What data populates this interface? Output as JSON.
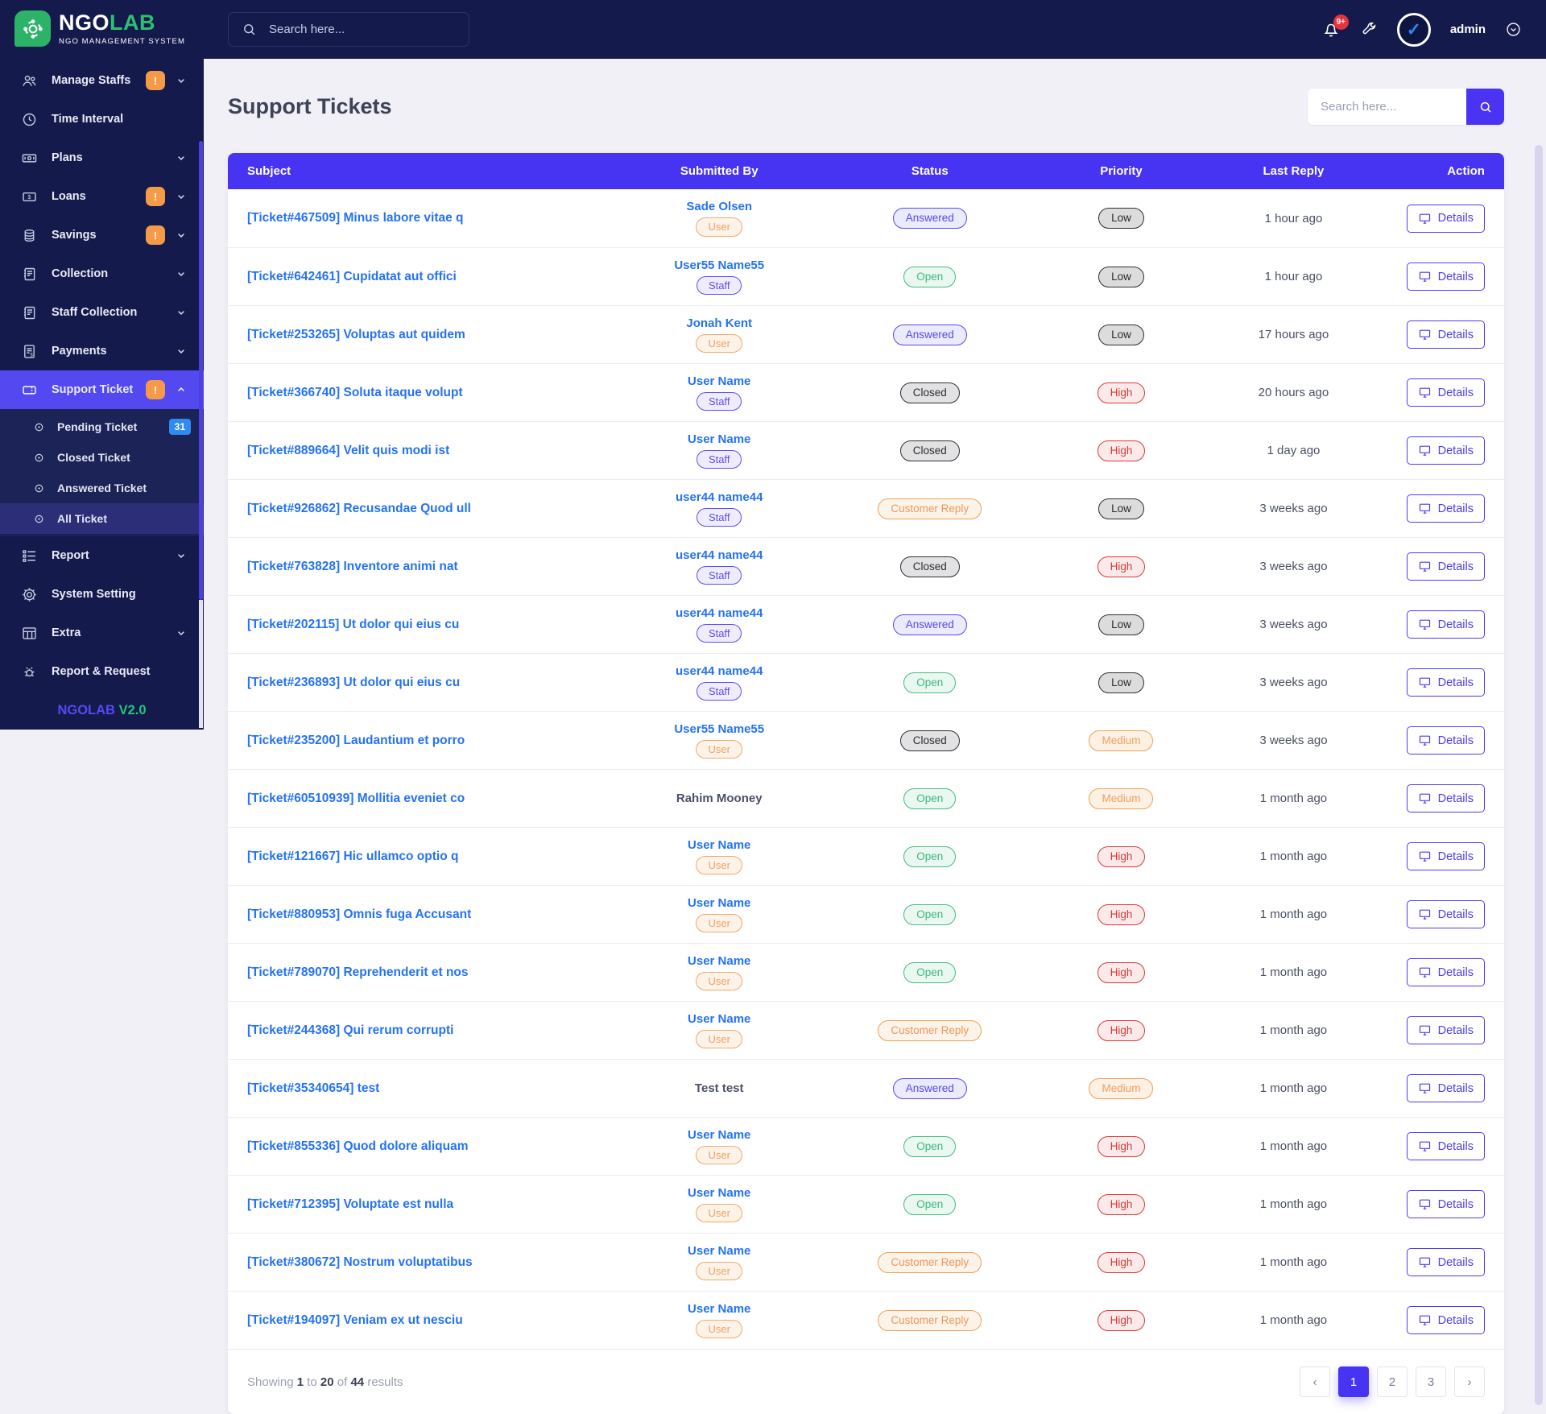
{
  "brand": {
    "name_part1": "NGO",
    "name_part2": "LAB",
    "tagline": "NGO MANAGEMENT SYSTEM",
    "footer_brand": "NGOLAB",
    "footer_version": "V2.0"
  },
  "topbar": {
    "search_placeholder": "Search here...",
    "notification_count": "9+",
    "username": "admin"
  },
  "sidebar": {
    "items": [
      {
        "label": "Manage Staffs",
        "icon": "users-icon",
        "badge": "!",
        "chevron": "down"
      },
      {
        "label": "Time Interval",
        "icon": "clock-icon"
      },
      {
        "label": "Plans",
        "icon": "banknote-icon",
        "chevron": "down"
      },
      {
        "label": "Loans",
        "icon": "loan-icon",
        "badge": "!",
        "chevron": "down"
      },
      {
        "label": "Savings",
        "icon": "coins-icon",
        "badge": "!",
        "chevron": "down"
      },
      {
        "label": "Collection",
        "icon": "ledger-icon",
        "chevron": "down"
      },
      {
        "label": "Staff Collection",
        "icon": "ledger-icon",
        "chevron": "down"
      },
      {
        "label": "Payments",
        "icon": "invoice-icon",
        "chevron": "down"
      },
      {
        "label": "Support Ticket",
        "icon": "ticket-icon",
        "badge": "!",
        "chevron": "up",
        "active": true,
        "submenu": [
          {
            "label": "Pending Ticket",
            "badge": "31"
          },
          {
            "label": "Closed Ticket"
          },
          {
            "label": "Answered Ticket"
          },
          {
            "label": "All Ticket",
            "active": true
          }
        ]
      },
      {
        "label": "Report",
        "icon": "report-icon",
        "chevron": "down"
      },
      {
        "label": "System Setting",
        "icon": "gear-icon"
      },
      {
        "label": "Extra",
        "icon": "grid-icon",
        "chevron": "down"
      },
      {
        "label": "Report & Request",
        "icon": "bug-icon"
      }
    ]
  },
  "page": {
    "title": "Support Tickets",
    "search_placeholder": "Search here..."
  },
  "table": {
    "headers": [
      "Subject",
      "Submitted By",
      "Status",
      "Priority",
      "Last Reply",
      "Action"
    ],
    "action_label": "Details",
    "rows": [
      {
        "subject": "[Ticket#467509] Minus labore vitae q",
        "submitted_by": "Sade Olsen",
        "submitter_type": "User",
        "status": "Answered",
        "priority": "Low",
        "last_reply": "1 hour ago"
      },
      {
        "subject": "[Ticket#642461] Cupidatat aut offici",
        "submitted_by": "User55 Name55",
        "submitter_type": "Staff",
        "status": "Open",
        "priority": "Low",
        "last_reply": "1 hour ago"
      },
      {
        "subject": "[Ticket#253265] Voluptas aut quidem",
        "submitted_by": "Jonah Kent",
        "submitter_type": "User",
        "status": "Answered",
        "priority": "Low",
        "last_reply": "17 hours ago"
      },
      {
        "subject": "[Ticket#366740] Soluta itaque volupt",
        "submitted_by": "User Name",
        "submitter_type": "Staff",
        "status": "Closed",
        "priority": "High",
        "last_reply": "20 hours ago"
      },
      {
        "subject": "[Ticket#889664] Velit quis modi ist",
        "submitted_by": "User Name",
        "submitter_type": "Staff",
        "status": "Closed",
        "priority": "High",
        "last_reply": "1 day ago"
      },
      {
        "subject": "[Ticket#926862] Recusandae Quod ull",
        "submitted_by": "user44 name44",
        "submitter_type": "Staff",
        "status": "Customer Reply",
        "priority": "Low",
        "last_reply": "3 weeks ago"
      },
      {
        "subject": "[Ticket#763828] Inventore animi nat",
        "submitted_by": "user44 name44",
        "submitter_type": "Staff",
        "status": "Closed",
        "priority": "High",
        "last_reply": "3 weeks ago"
      },
      {
        "subject": "[Ticket#202115] Ut dolor qui eius cu",
        "submitted_by": "user44 name44",
        "submitter_type": "Staff",
        "status": "Answered",
        "priority": "Low",
        "last_reply": "3 weeks ago"
      },
      {
        "subject": "[Ticket#236893] Ut dolor qui eius cu",
        "submitted_by": "user44 name44",
        "submitter_type": "Staff",
        "status": "Open",
        "priority": "Low",
        "last_reply": "3 weeks ago"
      },
      {
        "subject": "[Ticket#235200] Laudantium et porro",
        "submitted_by": "User55 Name55",
        "submitter_type": "User",
        "status": "Closed",
        "priority": "Medium",
        "last_reply": "3 weeks ago"
      },
      {
        "subject": "[Ticket#60510939] Mollitia eveniet co",
        "submitted_by": "Rahim Mooney",
        "submitter_type": null,
        "status": "Open",
        "priority": "Medium",
        "last_reply": "1 month ago"
      },
      {
        "subject": "[Ticket#121667] Hic ullamco optio q",
        "submitted_by": "User Name",
        "submitter_type": "User",
        "status": "Open",
        "priority": "High",
        "last_reply": "1 month ago"
      },
      {
        "subject": "[Ticket#880953] Omnis fuga Accusant",
        "submitted_by": "User Name",
        "submitter_type": "User",
        "status": "Open",
        "priority": "High",
        "last_reply": "1 month ago"
      },
      {
        "subject": "[Ticket#789070] Reprehenderit et nos",
        "submitted_by": "User Name",
        "submitter_type": "User",
        "status": "Open",
        "priority": "High",
        "last_reply": "1 month ago"
      },
      {
        "subject": "[Ticket#244368] Qui rerum corrupti",
        "submitted_by": "User Name",
        "submitter_type": "User",
        "status": "Customer Reply",
        "priority": "High",
        "last_reply": "1 month ago"
      },
      {
        "subject": "[Ticket#35340654] test",
        "submitted_by": "Test test",
        "submitter_type": null,
        "status": "Answered",
        "priority": "Medium",
        "last_reply": "1 month ago"
      },
      {
        "subject": "[Ticket#855336] Quod dolore aliquam",
        "submitted_by": "User Name",
        "submitter_type": "User",
        "status": "Open",
        "priority": "High",
        "last_reply": "1 month ago"
      },
      {
        "subject": "[Ticket#712395] Voluptate est nulla",
        "submitted_by": "User Name",
        "submitter_type": "User",
        "status": "Open",
        "priority": "High",
        "last_reply": "1 month ago"
      },
      {
        "subject": "[Ticket#380672] Nostrum voluptatibus",
        "submitted_by": "User Name",
        "submitter_type": "User",
        "status": "Customer Reply",
        "priority": "High",
        "last_reply": "1 month ago"
      },
      {
        "subject": "[Ticket#194097] Veniam ex ut nesciu",
        "submitted_by": "User Name",
        "submitter_type": "User",
        "status": "Customer Reply",
        "priority": "High",
        "last_reply": "1 month ago"
      }
    ]
  },
  "pagination": {
    "showing_prefix": "Showing",
    "from": "1",
    "to_word": "to",
    "to": "20",
    "of_word": "of",
    "total": "44",
    "results_word": "results",
    "pages": [
      {
        "label": "‹",
        "name": "prev-page-button"
      },
      {
        "label": "1",
        "name": "page-1-button",
        "active": true
      },
      {
        "label": "2",
        "name": "page-2-button"
      },
      {
        "label": "3",
        "name": "page-3-button"
      },
      {
        "label": "›",
        "name": "next-page-button"
      }
    ]
  },
  "colors": {
    "sidebar_bg": "#141a4b",
    "sidebar_active": "#5449f0",
    "table_header": "#4733f2",
    "link_blue": "#2472f5",
    "open_green": "#3cb97e",
    "answered_indigo": "#544af0",
    "closed_dark": "#2c2c2c",
    "customer_reply_orange": "#f0955e",
    "high_red": "#d93a3a",
    "medium_orange": "#efa061",
    "warning_badge_orange": "#f59a46",
    "count_badge_blue": "#2f8bef",
    "brand_green": "#2fbf71",
    "page_bg": "#f0f0f6"
  }
}
